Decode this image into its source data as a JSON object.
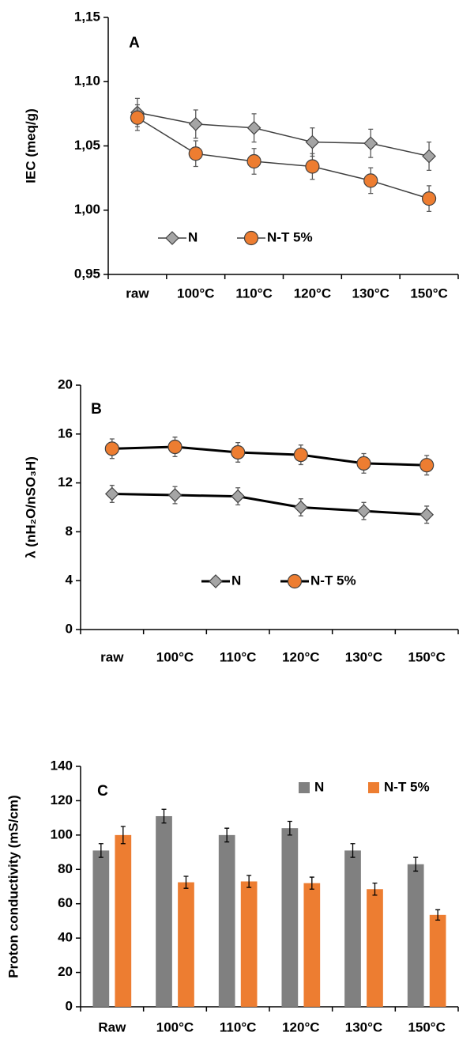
{
  "chart_data": [
    {
      "type": "line",
      "annotation": "A",
      "y_label": "IEC (meq/g)",
      "categories": [
        "raw",
        "100°C",
        "110°C",
        "120°C",
        "130°C",
        "150°C"
      ],
      "ylim": [
        0.95,
        1.15
      ],
      "yticks": [
        {
          "value": 0.95,
          "label": "0,95"
        },
        {
          "value": 1.0,
          "label": "1,00"
        },
        {
          "value": 1.05,
          "label": "1,05"
        },
        {
          "value": 1.1,
          "label": "1,10"
        },
        {
          "value": 1.15,
          "label": "1,15"
        }
      ],
      "series": [
        {
          "name": "N",
          "color": "#a5a5a5",
          "marker": "diamond",
          "values": [
            1.076,
            1.067,
            1.064,
            1.053,
            1.052,
            1.042
          ],
          "errors": [
            0.011,
            0.011,
            0.011,
            0.011,
            0.011,
            0.011
          ]
        },
        {
          "name": "N-T 5%",
          "color": "#ed7d31",
          "marker": "circle",
          "values": [
            1.072,
            1.044,
            1.038,
            1.034,
            1.023,
            1.009
          ],
          "errors": [
            0.01,
            0.01,
            0.01,
            0.01,
            0.01,
            0.01
          ]
        }
      ]
    },
    {
      "type": "line",
      "annotation": "B",
      "y_label": "λ (nH₂O/nSO₃H)",
      "categories": [
        "raw",
        "100°C",
        "110°C",
        "120°C",
        "130°C",
        "150°C"
      ],
      "ylim": [
        0,
        20
      ],
      "yticks": [
        0,
        4,
        8,
        12,
        16,
        20
      ],
      "series": [
        {
          "name": "N",
          "color": "#a5a5a5",
          "marker": "diamond",
          "values": [
            11.1,
            11.0,
            10.9,
            10.0,
            9.7,
            9.4
          ],
          "errors": [
            0.7,
            0.7,
            0.7,
            0.7,
            0.7,
            0.7
          ]
        },
        {
          "name": "N-T 5%",
          "color": "#ed7d31",
          "marker": "circle",
          "values": [
            14.8,
            14.95,
            14.5,
            14.3,
            13.6,
            13.45
          ],
          "errors": [
            0.8,
            0.8,
            0.8,
            0.8,
            0.8,
            0.8
          ]
        }
      ]
    },
    {
      "type": "bar",
      "annotation": "C",
      "y_label": "Proton conductivity (mS/cm)",
      "categories": [
        "Raw",
        "100°C",
        "110°C",
        "120°C",
        "130°C",
        "150°C"
      ],
      "ylim": [
        0,
        140
      ],
      "yticks": [
        0,
        20,
        40,
        60,
        80,
        100,
        120,
        140
      ],
      "series": [
        {
          "name": "N",
          "color": "#808080",
          "values": [
            91,
            111,
            100,
            104,
            91,
            83
          ],
          "errors": [
            4,
            4,
            4,
            4,
            4,
            4
          ]
        },
        {
          "name": "N-T 5%",
          "color": "#ed7d31",
          "values": [
            100,
            72.5,
            73,
            72,
            68.5,
            53.5
          ],
          "errors": [
            5,
            3.5,
            3.5,
            3.5,
            3.5,
            3
          ]
        }
      ]
    }
  ]
}
